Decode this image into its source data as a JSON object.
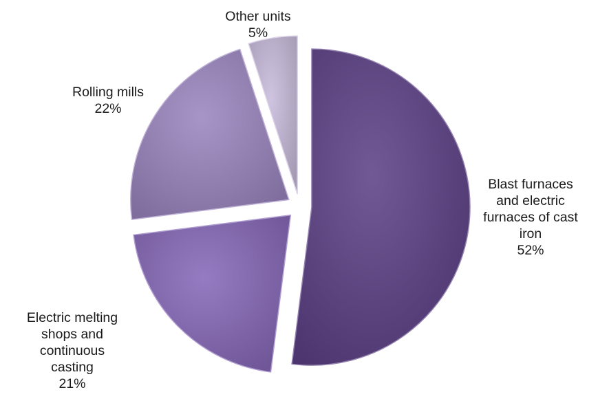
{
  "chart_data": {
    "type": "pie",
    "title": "",
    "exploded": true,
    "slices": [
      {
        "name": "Blast furnaces and electric furnaces of cast iron",
        "label_lines": [
          "Blast furnaces",
          "and electric",
          "furnaces of cast",
          "iron"
        ],
        "value": 52,
        "value_label": "52%",
        "color": "#5e4287"
      },
      {
        "name": "Electric melting shops and continuous casting",
        "label_lines": [
          "Electric melting",
          "shops and",
          "continuous",
          "casting"
        ],
        "value": 21,
        "value_label": "21%",
        "color": "#8769b8"
      },
      {
        "name": "Rolling mills",
        "label_lines": [
          "Rolling mills"
        ],
        "value": 22,
        "value_label": "22%",
        "color": "#9b86bf"
      },
      {
        "name": "Other units",
        "label_lines": [
          "Other units"
        ],
        "value": 5,
        "value_label": "5%",
        "color": "#c9bcdc"
      }
    ]
  }
}
